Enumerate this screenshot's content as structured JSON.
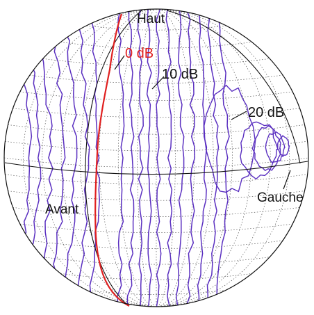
{
  "figure": {
    "labels": {
      "top": "Haut",
      "front": "Avant",
      "left": "Gauche",
      "level_0": "0 dB",
      "level_10": "10 dB",
      "level_20": "20 dB"
    },
    "colors": {
      "contour": "#5a2fc0",
      "zero_contour": "#e02020",
      "grid": "#555555",
      "outline": "#111111",
      "label_text": "#111111",
      "zero_label_text": "#e02020",
      "background": "#ffffff"
    }
  }
}
